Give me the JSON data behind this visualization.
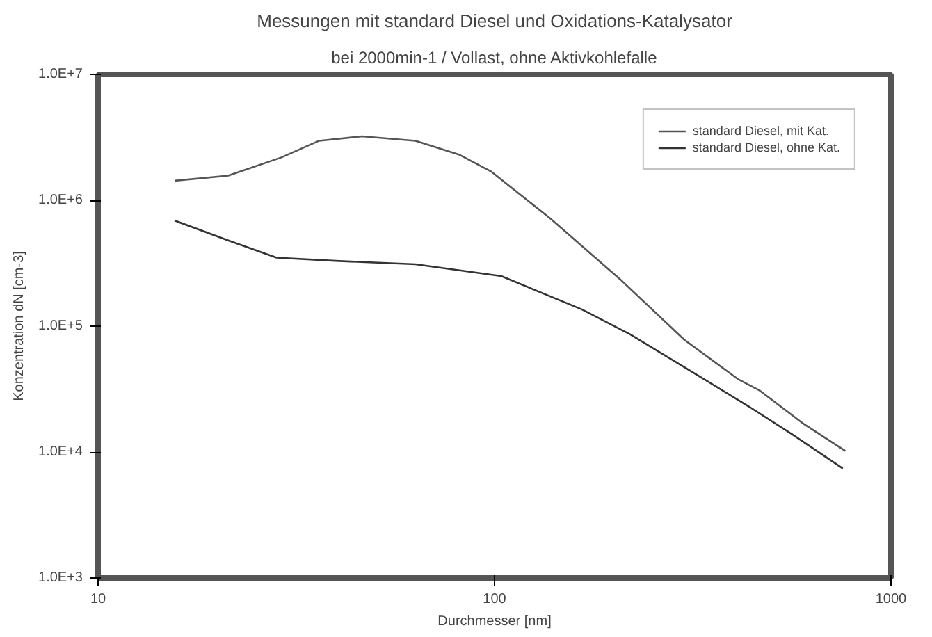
{
  "chart_data": {
    "type": "line",
    "title": "Messungen mit standard Diesel und Oxidations-Katalysator",
    "subtitle": "bei 2000min-1 / Vollast, ohne Aktivkohlefalle",
    "xlabel": "Durchmesser [nm]",
    "ylabel": "Konzentration dN [cm-3]",
    "log": "xy",
    "xlim": [
      10,
      1000
    ],
    "xticks": [
      10,
      100,
      1000
    ],
    "ylim": [
      1000,
      10000000
    ],
    "yticks": [
      {
        "value": 1000,
        "label": "1.0E+3"
      },
      {
        "value": 10000,
        "label": "1.0E+4"
      },
      {
        "value": 100000,
        "label": "1.0E+5"
      },
      {
        "value": 1000000,
        "label": "1.0E+6"
      },
      {
        "value": 10000000,
        "label": "1.0E+7"
      }
    ],
    "grid": false,
    "legend": "top right",
    "marker": "none",
    "line_style": "solid",
    "series": [
      {
        "name": "standard Diesel, mit Kat.",
        "color": "#555555",
        "x": [
          15.6,
          21.3,
          29.0,
          36.1,
          46.3,
          63.2,
          81.3,
          97.9,
          138,
          207,
          301,
          411,
          465,
          598,
          767
        ],
        "values": [
          1430000,
          1570000,
          2190000,
          2970000,
          3220000,
          2970000,
          2310000,
          1700000,
          720000,
          237000,
          78000,
          38000,
          31000,
          17000,
          10200
        ]
      },
      {
        "name": "standard Diesel, ohne Kat.",
        "color": "#333333",
        "x": [
          15.6,
          21.3,
          28.2,
          39.7,
          63.2,
          104,
          166,
          220,
          320,
          438,
          562,
          756
        ],
        "values": [
          690000,
          480000,
          350000,
          330000,
          310000,
          250000,
          136000,
          86000,
          42000,
          23000,
          13900,
          7400
        ]
      }
    ]
  }
}
